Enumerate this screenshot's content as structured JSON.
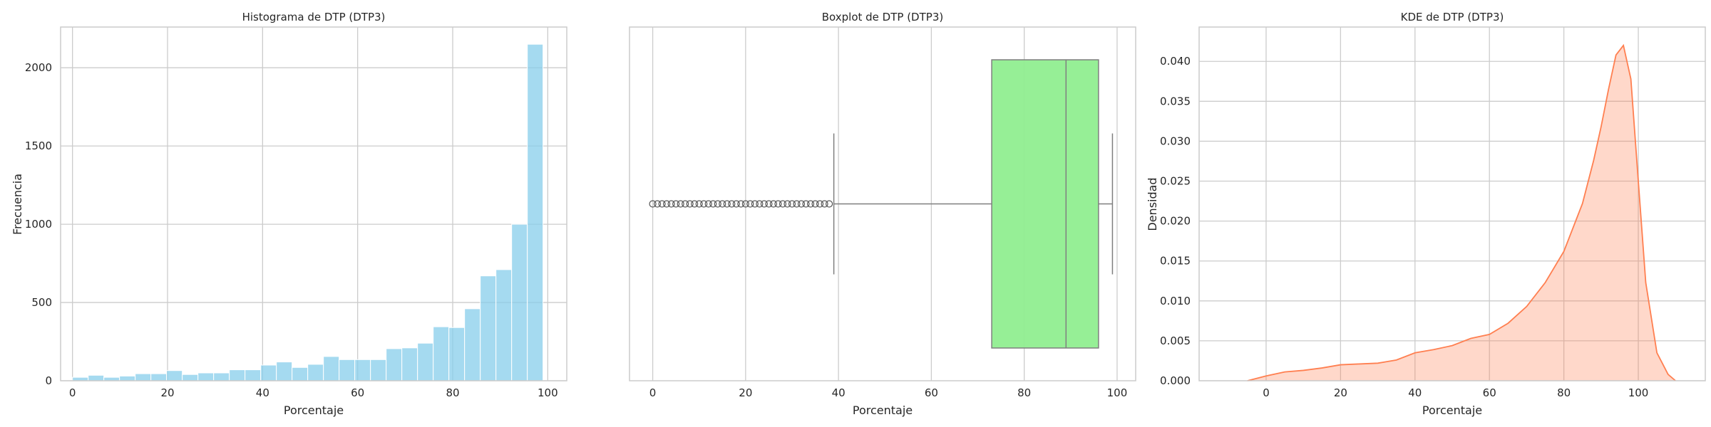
{
  "chart_data": [
    {
      "type": "bar",
      "title": "Histograma de DTP (DTP3)",
      "xlabel": "Porcentaje",
      "ylabel": "Frecuencia",
      "xlim": [
        -2.5,
        104
      ],
      "ylim": [
        0,
        2260
      ],
      "xticks": [
        0,
        20,
        40,
        60,
        80,
        100
      ],
      "yticks": [
        0,
        500,
        1000,
        1500,
        2000
      ],
      "grid": true,
      "color": "#87CEEB",
      "bin_width": 3.3,
      "bin_edges_start": 0,
      "values": [
        22,
        35,
        22,
        30,
        45,
        45,
        65,
        40,
        50,
        50,
        70,
        70,
        100,
        120,
        85,
        105,
        155,
        135,
        135,
        135,
        205,
        210,
        240,
        345,
        340,
        460,
        670,
        710,
        1000,
        2150
      ]
    },
    {
      "type": "boxplot",
      "title": "Boxplot de DTP (DTP3)",
      "xlabel": "Porcentaje",
      "ylabel": "",
      "xlim": [
        -5,
        104
      ],
      "xticks": [
        0,
        20,
        40,
        60,
        80,
        100
      ],
      "grid": true,
      "color": "#90EE90",
      "stats": {
        "whisker_low": 39,
        "q1": 73,
        "median": 89,
        "q3": 96,
        "whisker_high": 99
      },
      "outliers": [
        0,
        1,
        2,
        3,
        4,
        5,
        6,
        7,
        8,
        9,
        10,
        11,
        12,
        13,
        14,
        15,
        16,
        17,
        18,
        19,
        20,
        21,
        22,
        23,
        24,
        25,
        26,
        27,
        28,
        29,
        30,
        31,
        32,
        33,
        34,
        35,
        36,
        37,
        38
      ]
    },
    {
      "type": "area",
      "title": "KDE de DTP (DTP3)",
      "xlabel": "Porcentaje",
      "ylabel": "Densidad",
      "xlim": [
        -18,
        118
      ],
      "ylim": [
        0,
        0.0443
      ],
      "xticks": [
        0,
        20,
        40,
        60,
        80,
        100
      ],
      "yticks": [
        0,
        0.005,
        0.01,
        0.015,
        0.02,
        0.025,
        0.03,
        0.035,
        0.04
      ],
      "ytick_labels": [
        "0.000",
        "0.005",
        "0.010",
        "0.015",
        "0.020",
        "0.025",
        "0.030",
        "0.035",
        "0.040"
      ],
      "grid": true,
      "color": "#FF7F50",
      "x": [
        -5,
        0,
        5,
        10,
        15,
        20,
        25,
        30,
        35,
        40,
        45,
        50,
        55,
        60,
        65,
        70,
        75,
        80,
        85,
        88,
        90,
        92,
        94,
        96,
        98,
        100,
        102,
        105,
        108,
        110
      ],
      "y": [
        0,
        0.0006,
        0.0011,
        0.0013,
        0.0016,
        0.002,
        0.0021,
        0.0022,
        0.0026,
        0.0035,
        0.0039,
        0.0044,
        0.0053,
        0.0058,
        0.0072,
        0.0093,
        0.0123,
        0.0162,
        0.0222,
        0.0276,
        0.0318,
        0.0365,
        0.0408,
        0.042,
        0.0378,
        0.025,
        0.0123,
        0.0035,
        0.0008,
        0
      ]
    }
  ]
}
